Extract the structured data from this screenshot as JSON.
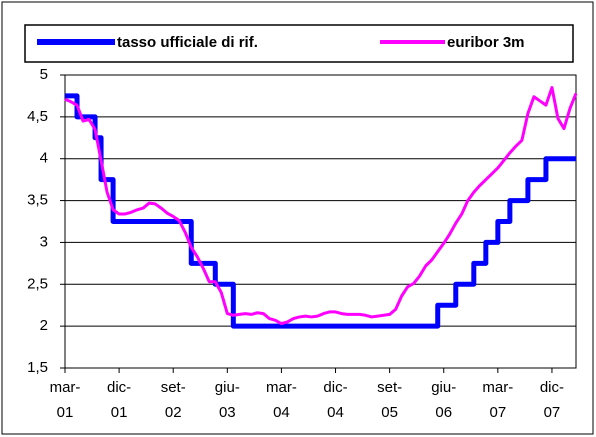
{
  "chart_data": {
    "type": "line",
    "series": [
      {
        "name": "tasso ufficiale di rif.",
        "color": "#0000ff",
        "values": [
          4.75,
          4.75,
          4.5,
          4.5,
          4.5,
          4.25,
          3.75,
          3.75,
          3.25,
          3.25,
          3.25,
          3.25,
          3.25,
          3.25,
          3.25,
          3.25,
          3.25,
          3.25,
          3.25,
          3.25,
          3.25,
          2.75,
          2.75,
          2.75,
          2.75,
          2.5,
          2.5,
          2.5,
          2.0,
          2.0,
          2.0,
          2.0,
          2.0,
          2.0,
          2.0,
          2.0,
          2.0,
          2.0,
          2.0,
          2.0,
          2.0,
          2.0,
          2.0,
          2.0,
          2.0,
          2.0,
          2.0,
          2.0,
          2.0,
          2.0,
          2.0,
          2.0,
          2.0,
          2.0,
          2.0,
          2.0,
          2.0,
          2.0,
          2.0,
          2.0,
          2.0,
          2.0,
          2.25,
          2.25,
          2.25,
          2.5,
          2.5,
          2.5,
          2.75,
          2.75,
          3.0,
          3.0,
          3.25,
          3.25,
          3.5,
          3.5,
          3.5,
          3.75,
          3.75,
          3.75,
          4.0,
          4.0,
          4.0,
          4.0,
          4.0,
          4.0
        ]
      },
      {
        "name": "euribor 3m",
        "color": "#ff00ff",
        "values": [
          4.71,
          4.68,
          4.64,
          4.45,
          4.47,
          4.35,
          3.98,
          3.6,
          3.39,
          3.34,
          3.34,
          3.36,
          3.39,
          3.41,
          3.47,
          3.46,
          3.41,
          3.35,
          3.31,
          3.26,
          3.12,
          2.94,
          2.83,
          2.69,
          2.53,
          2.53,
          2.4,
          2.15,
          2.13,
          2.14,
          2.15,
          2.14,
          2.16,
          2.15,
          2.09,
          2.07,
          2.03,
          2.05,
          2.09,
          2.11,
          2.12,
          2.11,
          2.12,
          2.15,
          2.17,
          2.17,
          2.15,
          2.14,
          2.14,
          2.14,
          2.13,
          2.11,
          2.12,
          2.13,
          2.14,
          2.2,
          2.36,
          2.47,
          2.51,
          2.6,
          2.72,
          2.79,
          2.89,
          2.99,
          3.1,
          3.23,
          3.34,
          3.5,
          3.6,
          3.68,
          3.75,
          3.82,
          3.89,
          3.98,
          4.07,
          4.15,
          4.22,
          4.54,
          4.74,
          4.69,
          4.64,
          4.85,
          4.48,
          4.36,
          4.6,
          4.78
        ]
      }
    ],
    "categories": [
      "mar-\n01",
      null,
      null,
      null,
      null,
      null,
      null,
      null,
      null,
      "dic-\n01",
      null,
      null,
      null,
      null,
      null,
      null,
      null,
      null,
      "set-\n02",
      null,
      null,
      null,
      null,
      null,
      null,
      null,
      null,
      "giu-\n03",
      null,
      null,
      null,
      null,
      null,
      null,
      null,
      null,
      "mar-\n04",
      null,
      null,
      null,
      null,
      null,
      null,
      null,
      null,
      "dic-\n04",
      null,
      null,
      null,
      null,
      null,
      null,
      null,
      null,
      "set-\n05",
      null,
      null,
      null,
      null,
      null,
      null,
      null,
      null,
      "giu-\n06",
      null,
      null,
      null,
      null,
      null,
      null,
      null,
      null,
      "mar-\n07",
      null,
      null,
      null,
      null,
      null,
      null,
      null,
      null,
      "dic-\n07",
      null,
      null,
      null,
      null
    ],
    "ylim": [
      1.5,
      5
    ],
    "yticks": [
      {
        "value": 1.5,
        "label": "1,5"
      },
      2,
      {
        "value": 2.5,
        "label": "2,5"
      },
      3,
      {
        "value": 3.5,
        "label": "3,5"
      },
      4,
      {
        "value": 4.5,
        "label": "4,5"
      },
      5
    ],
    "grid": true,
    "step_series": 0
  }
}
